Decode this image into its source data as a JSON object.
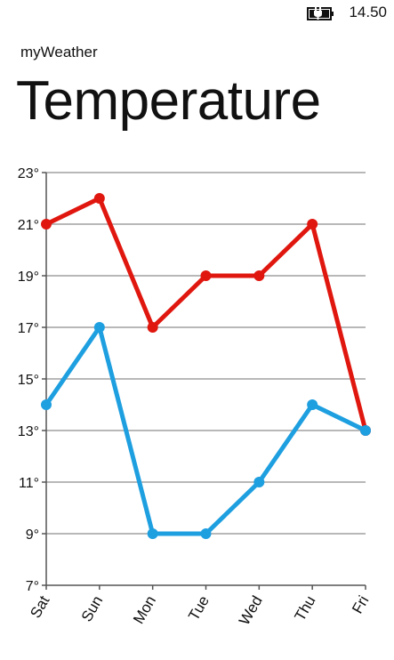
{
  "status_bar": {
    "time": "14.50",
    "icon": "battery-charging-icon"
  },
  "app": {
    "name": "myWeather"
  },
  "page": {
    "title": "Temperature"
  },
  "colors": {
    "high": "#e0170f",
    "low": "#1e9fe0",
    "grid": "#a0a0a0",
    "axis": "#555555",
    "text": "#111111"
  },
  "chart_data": {
    "type": "line",
    "categories": [
      "Sat",
      "Sun",
      "Mon",
      "Tue",
      "Wed",
      "Thu",
      "Fri"
    ],
    "series": [
      {
        "values": [
          21,
          22,
          17,
          19,
          19,
          21,
          13
        ],
        "color": "#e0170f"
      },
      {
        "values": [
          14,
          17,
          9,
          9,
          11,
          14,
          13
        ],
        "color": "#1e9fe0"
      }
    ],
    "ylim": [
      7,
      23
    ],
    "yticks": [
      7,
      9,
      11,
      13,
      15,
      17,
      19,
      21,
      23
    ],
    "ytick_labels": [
      "7°",
      "9°",
      "11°",
      "13°",
      "15°",
      "17°",
      "19°",
      "21°",
      "23°"
    ],
    "grid": true,
    "legend": false,
    "xlabel": "",
    "ylabel": "",
    "title": ""
  }
}
